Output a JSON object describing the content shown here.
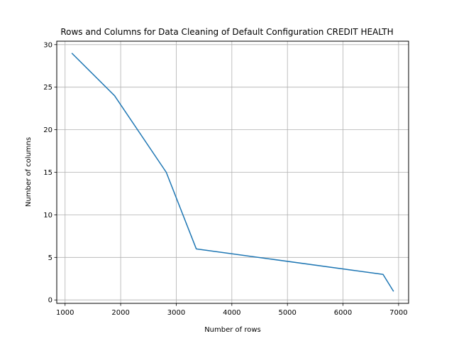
{
  "chart_data": {
    "type": "line",
    "title": "Rows and Columns for Data Cleaning of Default Configuration CREDIT HEALTH",
    "xlabel": "Number of rows",
    "ylabel": "Number of columns",
    "xlim": [
      850,
      7180
    ],
    "ylim": [
      -0.4,
      30.4
    ],
    "xticks": [
      1000,
      2000,
      3000,
      4000,
      5000,
      6000,
      7000
    ],
    "yticks": [
      0,
      5,
      10,
      15,
      20,
      25,
      30
    ],
    "grid": true,
    "series": [
      {
        "color": "#1f77b4",
        "x": [
          1120,
          1890,
          2820,
          3360,
          6720,
          6910
        ],
        "y": [
          29,
          24,
          15,
          6,
          3,
          1
        ]
      }
    ]
  }
}
